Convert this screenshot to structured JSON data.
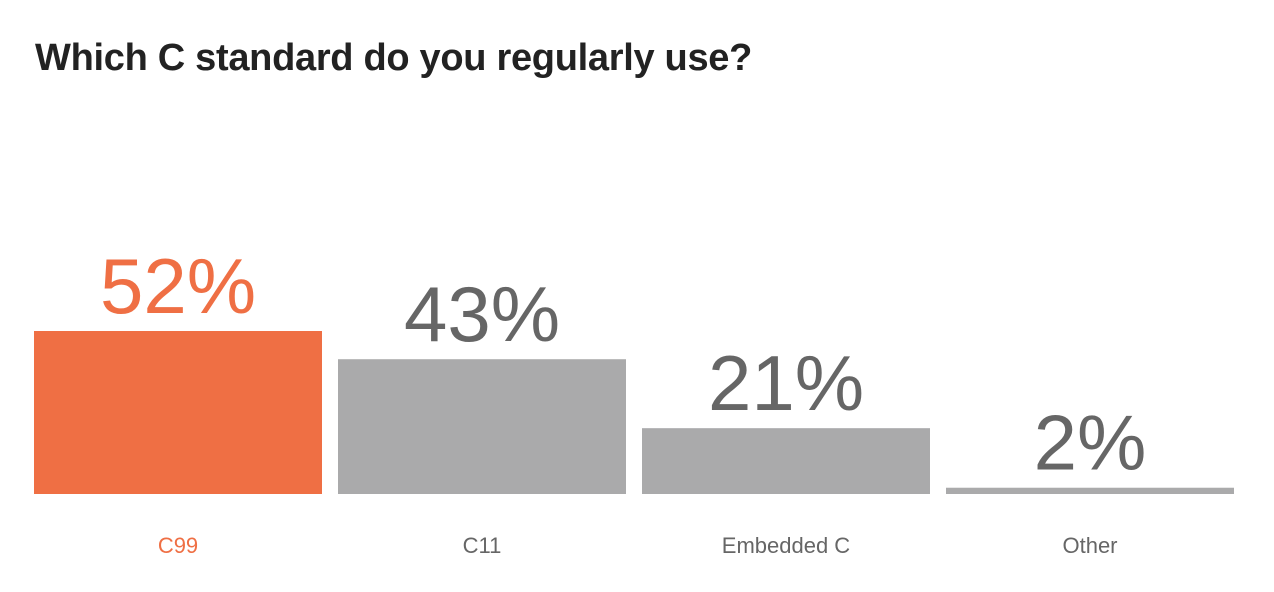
{
  "chart_data": {
    "type": "bar",
    "title": "Which C standard do you regularly use?",
    "categories": [
      "C99",
      "C11",
      "Embedded C",
      "Other"
    ],
    "values": [
      52,
      43,
      21,
      2
    ],
    "value_labels": [
      "52%",
      "43%",
      "21%",
      "2%"
    ],
    "unit": "%",
    "xlabel": "",
    "ylabel": "",
    "ylim": [
      0,
      52
    ],
    "grid": false,
    "highlight_index": 0,
    "colors": {
      "highlight_bar": "#ef6f44",
      "bar": "#aaaaab",
      "highlight_text": "#ef6f44",
      "label_text": "#666666",
      "value_text": "#666666",
      "title_text": "#222222"
    }
  }
}
